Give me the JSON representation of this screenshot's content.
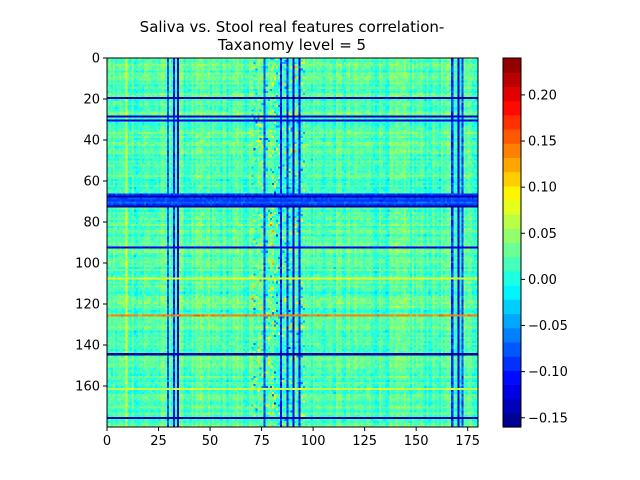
{
  "chart_data": {
    "type": "heatmap",
    "title_lines": [
      "Saliva vs. Stool real features correlation-",
      "Taxanomy level = 5"
    ],
    "xlabel": "",
    "ylabel": "",
    "rows": 180,
    "cols": 180,
    "xlim": [
      0,
      180
    ],
    "ylim": [
      180,
      0
    ],
    "x_ticks": [
      0,
      25,
      50,
      75,
      100,
      125,
      150,
      175
    ],
    "y_ticks": [
      0,
      20,
      40,
      60,
      80,
      100,
      120,
      140,
      160
    ],
    "colormap": "jet",
    "vmin": -0.16,
    "vmax": 0.24,
    "colorbar_ticks": [
      -0.15,
      -0.1,
      -0.05,
      0.0,
      0.05,
      0.1,
      0.15,
      0.2
    ],
    "colorbar_tick_labels": [
      "−0.15",
      "−0.10",
      "−0.05",
      "0.00",
      "0.05",
      "0.10",
      "0.15",
      "0.20"
    ],
    "colorbar_levels": 26,
    "background_value": 0.02,
    "bands": [
      {
        "axis": "row",
        "index": 19,
        "value": -0.14
      },
      {
        "axis": "row",
        "index": 28,
        "value": -0.13
      },
      {
        "axis": "row",
        "index": 30,
        "value": -0.12
      },
      {
        "axis": "row",
        "index": 66,
        "value": -0.09
      },
      {
        "axis": "row",
        "index": 67,
        "value": -0.14
      },
      {
        "axis": "row",
        "index": 68,
        "value": -0.08
      },
      {
        "axis": "row",
        "index": 69,
        "value": -0.09
      },
      {
        "axis": "row",
        "index": 70,
        "value": -0.07
      },
      {
        "axis": "row",
        "index": 71,
        "value": -0.09
      },
      {
        "axis": "row",
        "index": 72,
        "value": -0.15
      },
      {
        "axis": "row",
        "index": 92,
        "value": -0.12
      },
      {
        "axis": "row",
        "index": 107,
        "value": 0.08
      },
      {
        "axis": "row",
        "index": 125,
        "value": 0.14
      },
      {
        "axis": "row",
        "index": 144,
        "value": -0.15
      },
      {
        "axis": "row",
        "index": 161,
        "value": 0.07
      },
      {
        "axis": "row",
        "index": 175,
        "value": -0.14
      },
      {
        "axis": "col",
        "index": 9,
        "value": 0.07
      },
      {
        "axis": "col",
        "index": 29,
        "value": -0.07
      },
      {
        "axis": "col",
        "index": 32,
        "value": -0.1
      },
      {
        "axis": "col",
        "index": 34,
        "value": -0.12
      },
      {
        "axis": "col",
        "index": 76,
        "value": -0.08
      },
      {
        "axis": "col",
        "index": 84,
        "value": -0.1
      },
      {
        "axis": "col",
        "index": 87,
        "value": -0.09
      },
      {
        "axis": "col",
        "index": 90,
        "value": -0.12
      },
      {
        "axis": "col",
        "index": 93,
        "value": -0.1
      },
      {
        "axis": "col",
        "index": 167,
        "value": -0.09
      },
      {
        "axis": "col",
        "index": 170,
        "value": -0.12
      },
      {
        "axis": "col",
        "index": 172,
        "value": -0.08
      }
    ]
  }
}
